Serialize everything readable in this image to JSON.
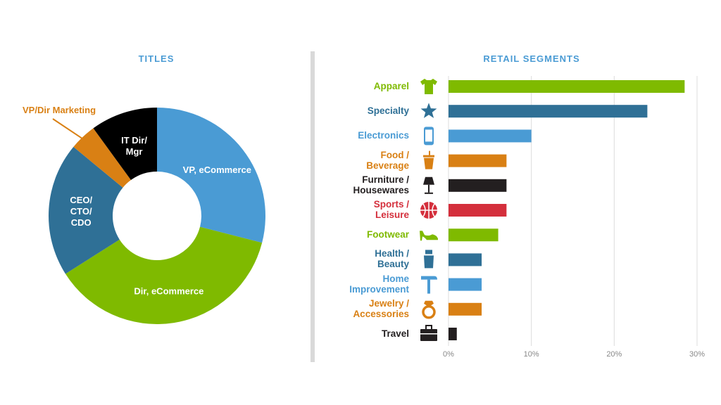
{
  "chart_data": [
    {
      "type": "pie",
      "title": "TITLES",
      "donut": true,
      "slices": [
        {
          "label": "VP, eCommerce",
          "value": 29,
          "color": "#4a9bd4"
        },
        {
          "label": "Dir, eCommerce",
          "value": 37,
          "color": "#7fba00"
        },
        {
          "label": "CEO/\nCTO/\nCDO",
          "value": 20,
          "color": "#2f7096"
        },
        {
          "label": "VP/Dir Marketing",
          "value": 4,
          "color": "#d98014"
        },
        {
          "label": "IT Dir/\nMgr",
          "value": 10,
          "color": "#000000"
        }
      ]
    },
    {
      "type": "bar",
      "orientation": "horizontal",
      "title": "RETAIL SEGMENTS",
      "xlim": [
        0,
        30
      ],
      "xticks": [
        "0%",
        "10%",
        "20%",
        "30%"
      ],
      "grid": true,
      "bars": [
        {
          "label": "Apparel",
          "value": 28.5,
          "color": "#7fba00",
          "icon": "tshirt-icon"
        },
        {
          "label": "Specialty",
          "value": 24,
          "color": "#2f7096",
          "icon": "star-icon"
        },
        {
          "label": "Electronics",
          "value": 10,
          "color": "#4a9bd4",
          "icon": "phone-icon"
        },
        {
          "label": "Food /\nBeverage",
          "value": 7,
          "color": "#d98014",
          "icon": "cup-icon"
        },
        {
          "label": "Furniture /\nHousewares",
          "value": 7,
          "color": "#231f20",
          "icon": "lamp-icon"
        },
        {
          "label": "Sports /\nLeisure",
          "value": 7,
          "color": "#d42f3c",
          "icon": "ball-icon"
        },
        {
          "label": "Footwear",
          "value": 6,
          "color": "#7fba00",
          "icon": "shoe-icon"
        },
        {
          "label": "Health /\nBeauty",
          "value": 4,
          "color": "#2f7096",
          "icon": "bottle-icon"
        },
        {
          "label": "Home\nImprovement",
          "value": 4,
          "color": "#4a9bd4",
          "icon": "hammer-icon"
        },
        {
          "label": "Jewelry /\nAccessories",
          "value": 4,
          "color": "#d98014",
          "icon": "ring-icon"
        },
        {
          "label": "Travel",
          "value": 1,
          "color": "#231f20",
          "icon": "suitcase-icon"
        }
      ]
    }
  ]
}
